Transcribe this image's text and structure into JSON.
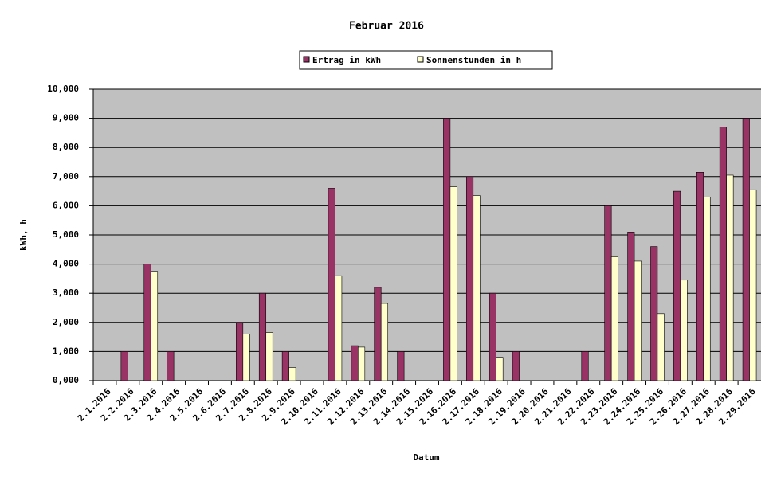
{
  "chart_data": {
    "type": "bar",
    "title": "Februar 2016",
    "x_label": "Datum",
    "y_label": "kWh, h",
    "categories": [
      "2.1.2016",
      "2.2.2016",
      "2.3.2016",
      "2.4.2016",
      "2.5.2016",
      "2.6.2016",
      "2.7.2016",
      "2.8.2016",
      "2.9.2016",
      "2.10.2016",
      "2.11.2016",
      "2.12.2016",
      "2.13.2016",
      "2.14.2016",
      "2.15.2016",
      "2.16.2016",
      "2.17.2016",
      "2.18.2016",
      "2.19.2016",
      "2.20.2016",
      "2.21.2016",
      "2.22.2016",
      "2.23.2016",
      "2.24.2016",
      "2.25.2016",
      "2.26.2016",
      "2.27.2016",
      "2.28.2016",
      "2.29.2016"
    ],
    "series": [
      {
        "name": "Ertrag in kWh",
        "color": "#993366",
        "values": [
          0,
          1,
          4,
          1,
          0,
          0,
          2,
          3,
          1,
          0,
          6.6,
          1.2,
          3.2,
          1,
          0,
          9,
          7,
          3,
          1,
          0,
          0,
          1,
          6,
          5.1,
          4.6,
          6.5,
          7.15,
          8.7,
          9
        ]
      },
      {
        "name": "Sonnenstunden in h",
        "color": "#FFFFCC",
        "values": [
          0,
          0,
          3.75,
          0,
          0,
          0,
          1.6,
          1.65,
          0.45,
          0,
          3.6,
          1.15,
          2.65,
          0,
          0,
          6.65,
          6.35,
          0.8,
          0,
          0,
          0,
          0,
          4.25,
          4.1,
          2.3,
          3.45,
          6.3,
          7.05,
          6.55
        ]
      }
    ],
    "ylim": [
      0,
      10
    ],
    "yticks": [
      {
        "value": 0,
        "label": "0,000"
      },
      {
        "value": 1,
        "label": "1,000"
      },
      {
        "value": 2,
        "label": "2,000"
      },
      {
        "value": 3,
        "label": "3,000"
      },
      {
        "value": 4,
        "label": "4,000"
      },
      {
        "value": 5,
        "label": "5,000"
      },
      {
        "value": 6,
        "label": "6,000"
      },
      {
        "value": 7,
        "label": "7,000"
      },
      {
        "value": 8,
        "label": "8,000"
      },
      {
        "value": 9,
        "label": "9,000"
      },
      {
        "value": 10,
        "label": "10,000"
      }
    ],
    "grid": true
  }
}
